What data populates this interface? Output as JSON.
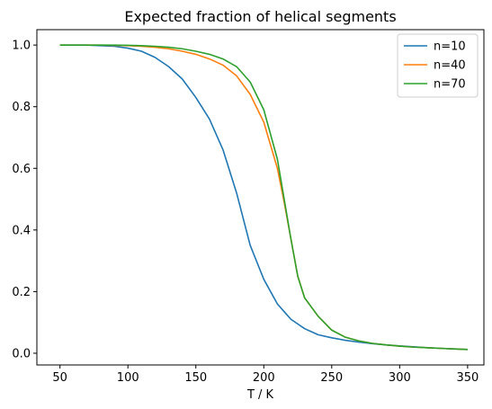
{
  "chart_data": {
    "type": "line",
    "title": "Expected fraction of helical segments",
    "xlabel": "T / K",
    "ylabel": "",
    "xlim": [
      33,
      362
    ],
    "ylim": [
      -0.038,
      1.05
    ],
    "xticks": [
      50,
      100,
      150,
      200,
      250,
      300,
      350
    ],
    "yticks": [
      0.0,
      0.2,
      0.4,
      0.6,
      0.8,
      1.0
    ],
    "grid": false,
    "legend_position": "top-right",
    "x": [
      50,
      60,
      70,
      80,
      90,
      100,
      110,
      120,
      130,
      140,
      150,
      160,
      170,
      180,
      190,
      200,
      210,
      215,
      220,
      225,
      230,
      235,
      240,
      250,
      260,
      270,
      280,
      290,
      300,
      310,
      320,
      330,
      340,
      350
    ],
    "series": [
      {
        "name": "n=10",
        "color": "#1f77b4",
        "values": [
          1.0,
          1.0,
          1.0,
          0.998,
          0.996,
          0.99,
          0.98,
          0.96,
          0.93,
          0.89,
          0.83,
          0.76,
          0.66,
          0.52,
          0.35,
          0.24,
          0.16,
          0.135,
          0.11,
          0.095,
          0.08,
          0.07,
          0.06,
          0.05,
          0.042,
          0.036,
          0.031,
          0.027,
          0.024,
          0.021,
          0.018,
          0.016,
          0.014,
          0.012
        ]
      },
      {
        "name": "n=40",
        "color": "#ff7f0e",
        "values": [
          1.0,
          1.0,
          1.0,
          1.0,
          0.999,
          0.998,
          0.996,
          0.993,
          0.988,
          0.98,
          0.97,
          0.955,
          0.935,
          0.9,
          0.84,
          0.75,
          0.6,
          0.49,
          0.37,
          0.25,
          0.18,
          0.15,
          0.12,
          0.075,
          0.052,
          0.04,
          0.032,
          0.027,
          0.023,
          0.02,
          0.018,
          0.016,
          0.014,
          0.012
        ]
      },
      {
        "name": "n=70",
        "color": "#2ca02c",
        "values": [
          1.0,
          1.0,
          1.0,
          1.0,
          1.0,
          0.999,
          0.998,
          0.996,
          0.993,
          0.988,
          0.98,
          0.97,
          0.955,
          0.93,
          0.88,
          0.79,
          0.63,
          0.5,
          0.37,
          0.25,
          0.18,
          0.15,
          0.12,
          0.075,
          0.052,
          0.04,
          0.032,
          0.027,
          0.023,
          0.02,
          0.018,
          0.016,
          0.014,
          0.012
        ]
      }
    ]
  }
}
